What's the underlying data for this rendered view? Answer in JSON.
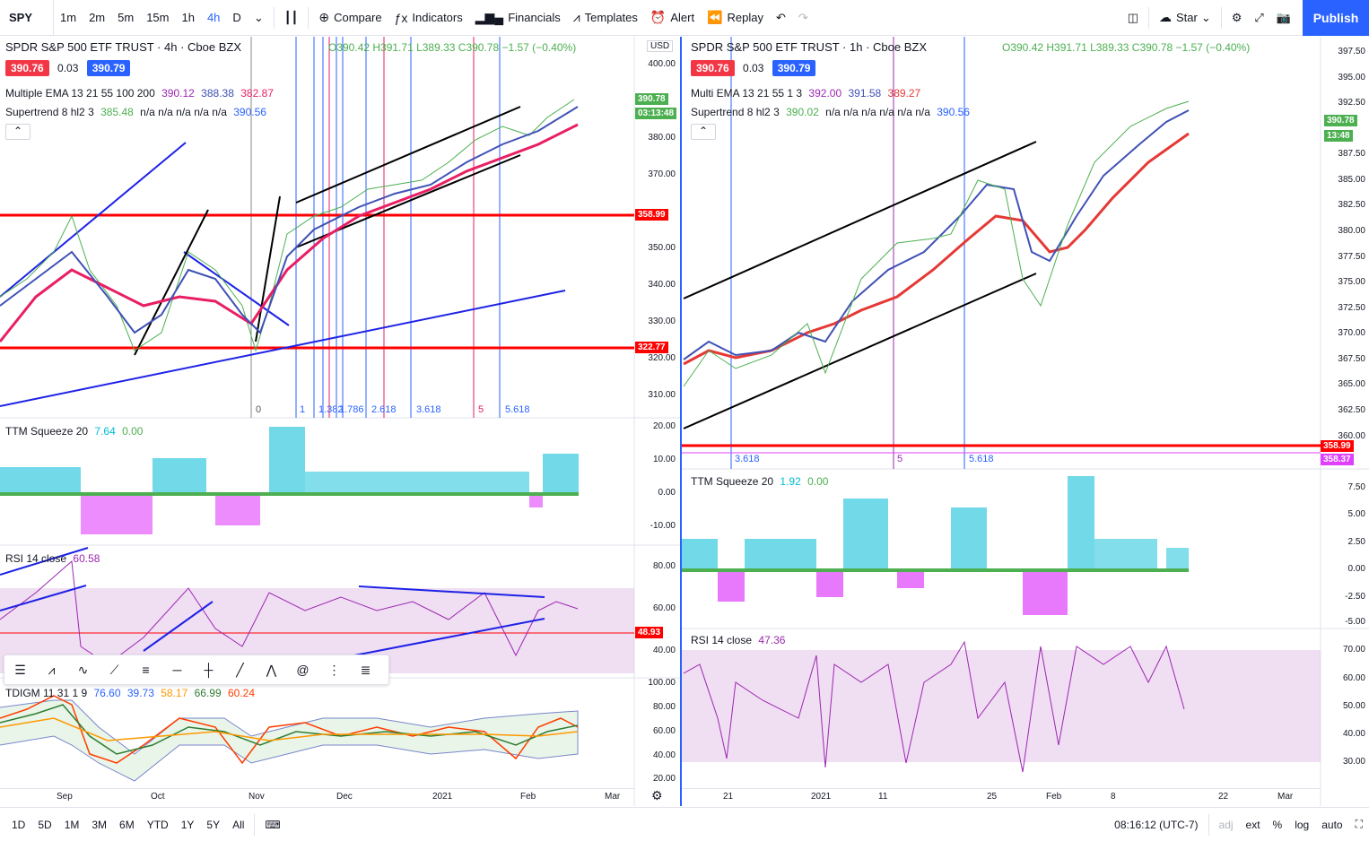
{
  "topbar": {
    "symbol": "SPY",
    "intervals": [
      "1m",
      "2m",
      "5m",
      "15m",
      "1h",
      "4h",
      "D"
    ],
    "active_interval": "4h",
    "compare": "Compare",
    "indicators": "Indicators",
    "financials": "Financials",
    "templates": "Templates",
    "alert": "Alert",
    "replay": "Replay",
    "star": "Star",
    "publish": "Publish"
  },
  "left": {
    "title": "SPDR S&P 500 ETF TRUST · 4h · Cboe BZX",
    "ohlc": "O390.42 H391.71 L389.33 C390.78 −1.57 (−0.40%)",
    "bid": "390.76",
    "spread": "0.03",
    "ask": "390.79",
    "currency": "USD",
    "ema_name": "Multiple EMA 13 21 55 100 200",
    "ema_vals": [
      "390.12",
      "388.38",
      "382.87"
    ],
    "st_name": "Supertrend 8 hl2 3",
    "st_val1": "385.48",
    "st_nas": "n/a n/a n/a n/a n/a",
    "st_val2": "390.56",
    "price_axis": [
      "400.00",
      "390.00",
      "380.00",
      "370.00",
      "360.00",
      "350.00",
      "340.00",
      "330.00",
      "320.00",
      "310.00"
    ],
    "price_tag": "390.78",
    "price_timer": "03:13:48",
    "level_top": "358.99",
    "level_bot": "322.77",
    "fib_labels": [
      "0",
      "1",
      "1.382",
      "1.786",
      "2.618",
      "3.618",
      "5",
      "5.618"
    ],
    "ttm_name": "TTM Squeeze 20",
    "ttm_v1": "7.64",
    "ttm_v2": "0.00",
    "ttm_axis": [
      "20.00",
      "10.00",
      "0.00",
      "-10.00"
    ],
    "rsi_name": "RSI 14 close",
    "rsi_val": "60.58",
    "rsi_axis": [
      "80.00",
      "60.00",
      "40.00"
    ],
    "rsi_tag": "48.93",
    "tdi_name": "TDIGM 11 31 1 9",
    "tdi_vals": [
      "76.60",
      "39.73",
      "58.17",
      "66.99",
      "60.24"
    ],
    "tdi_axis": [
      "100.00",
      "80.00",
      "60.00",
      "40.00",
      "20.00"
    ],
    "xaxis": [
      "Sep",
      "Oct",
      "Nov",
      "Dec",
      "2021",
      "Feb",
      "Mar"
    ]
  },
  "right": {
    "title": "SPDR S&P 500 ETF TRUST · 1h · Cboe BZX",
    "ohlc": "O390.42 H391.71 L389.33 C390.78 −1.57 (−0.40%)",
    "bid": "390.76",
    "spread": "0.03",
    "ask": "390.79",
    "ema_name": "Multi EMA 13 21 55 1 3",
    "ema_vals": [
      "392.00",
      "391.58",
      "389.27"
    ],
    "st_name": "Supertrend 8 hl2 3",
    "st_val1": "390.02",
    "st_nas": "n/a n/a n/a n/a n/a n/a",
    "st_val2": "390.56",
    "price_axis": [
      "397.50",
      "395.00",
      "392.50",
      "390.00",
      "387.50",
      "385.00",
      "382.50",
      "380.00",
      "377.50",
      "375.00",
      "372.50",
      "370.00",
      "367.50",
      "365.00",
      "362.50",
      "360.00"
    ],
    "price_tag": "390.78",
    "price_timer": "13:48",
    "level_a": "358.99",
    "level_b": "358.37",
    "fib_labels": [
      "3.618",
      "5",
      "5.618"
    ],
    "ttm_name": "TTM Squeeze 20",
    "ttm_v1": "1.92",
    "ttm_v2": "0.00",
    "ttm_axis": [
      "7.50",
      "5.00",
      "2.50",
      "0.00",
      "-2.50",
      "-5.00"
    ],
    "rsi_name": "RSI 14 close",
    "rsi_val": "47.36",
    "rsi_axis": [
      "70.00",
      "60.00",
      "50.00",
      "40.00",
      "30.00"
    ],
    "xaxis": [
      "21",
      "2021",
      "11",
      "25",
      "Feb",
      "8",
      "22",
      "Mar"
    ]
  },
  "bottombar": {
    "ranges": [
      "1D",
      "5D",
      "1M",
      "3M",
      "6M",
      "YTD",
      "1Y",
      "5Y",
      "All"
    ],
    "time": "08:16:12 (UTC-7)",
    "adj": "adj",
    "ext": "ext",
    "pct": "%",
    "log": "log",
    "auto": "auto"
  },
  "colors": {
    "accent": "#2962ff",
    "red": "#ff0000",
    "green": "#4caf50",
    "purple": "#9c27b0"
  }
}
